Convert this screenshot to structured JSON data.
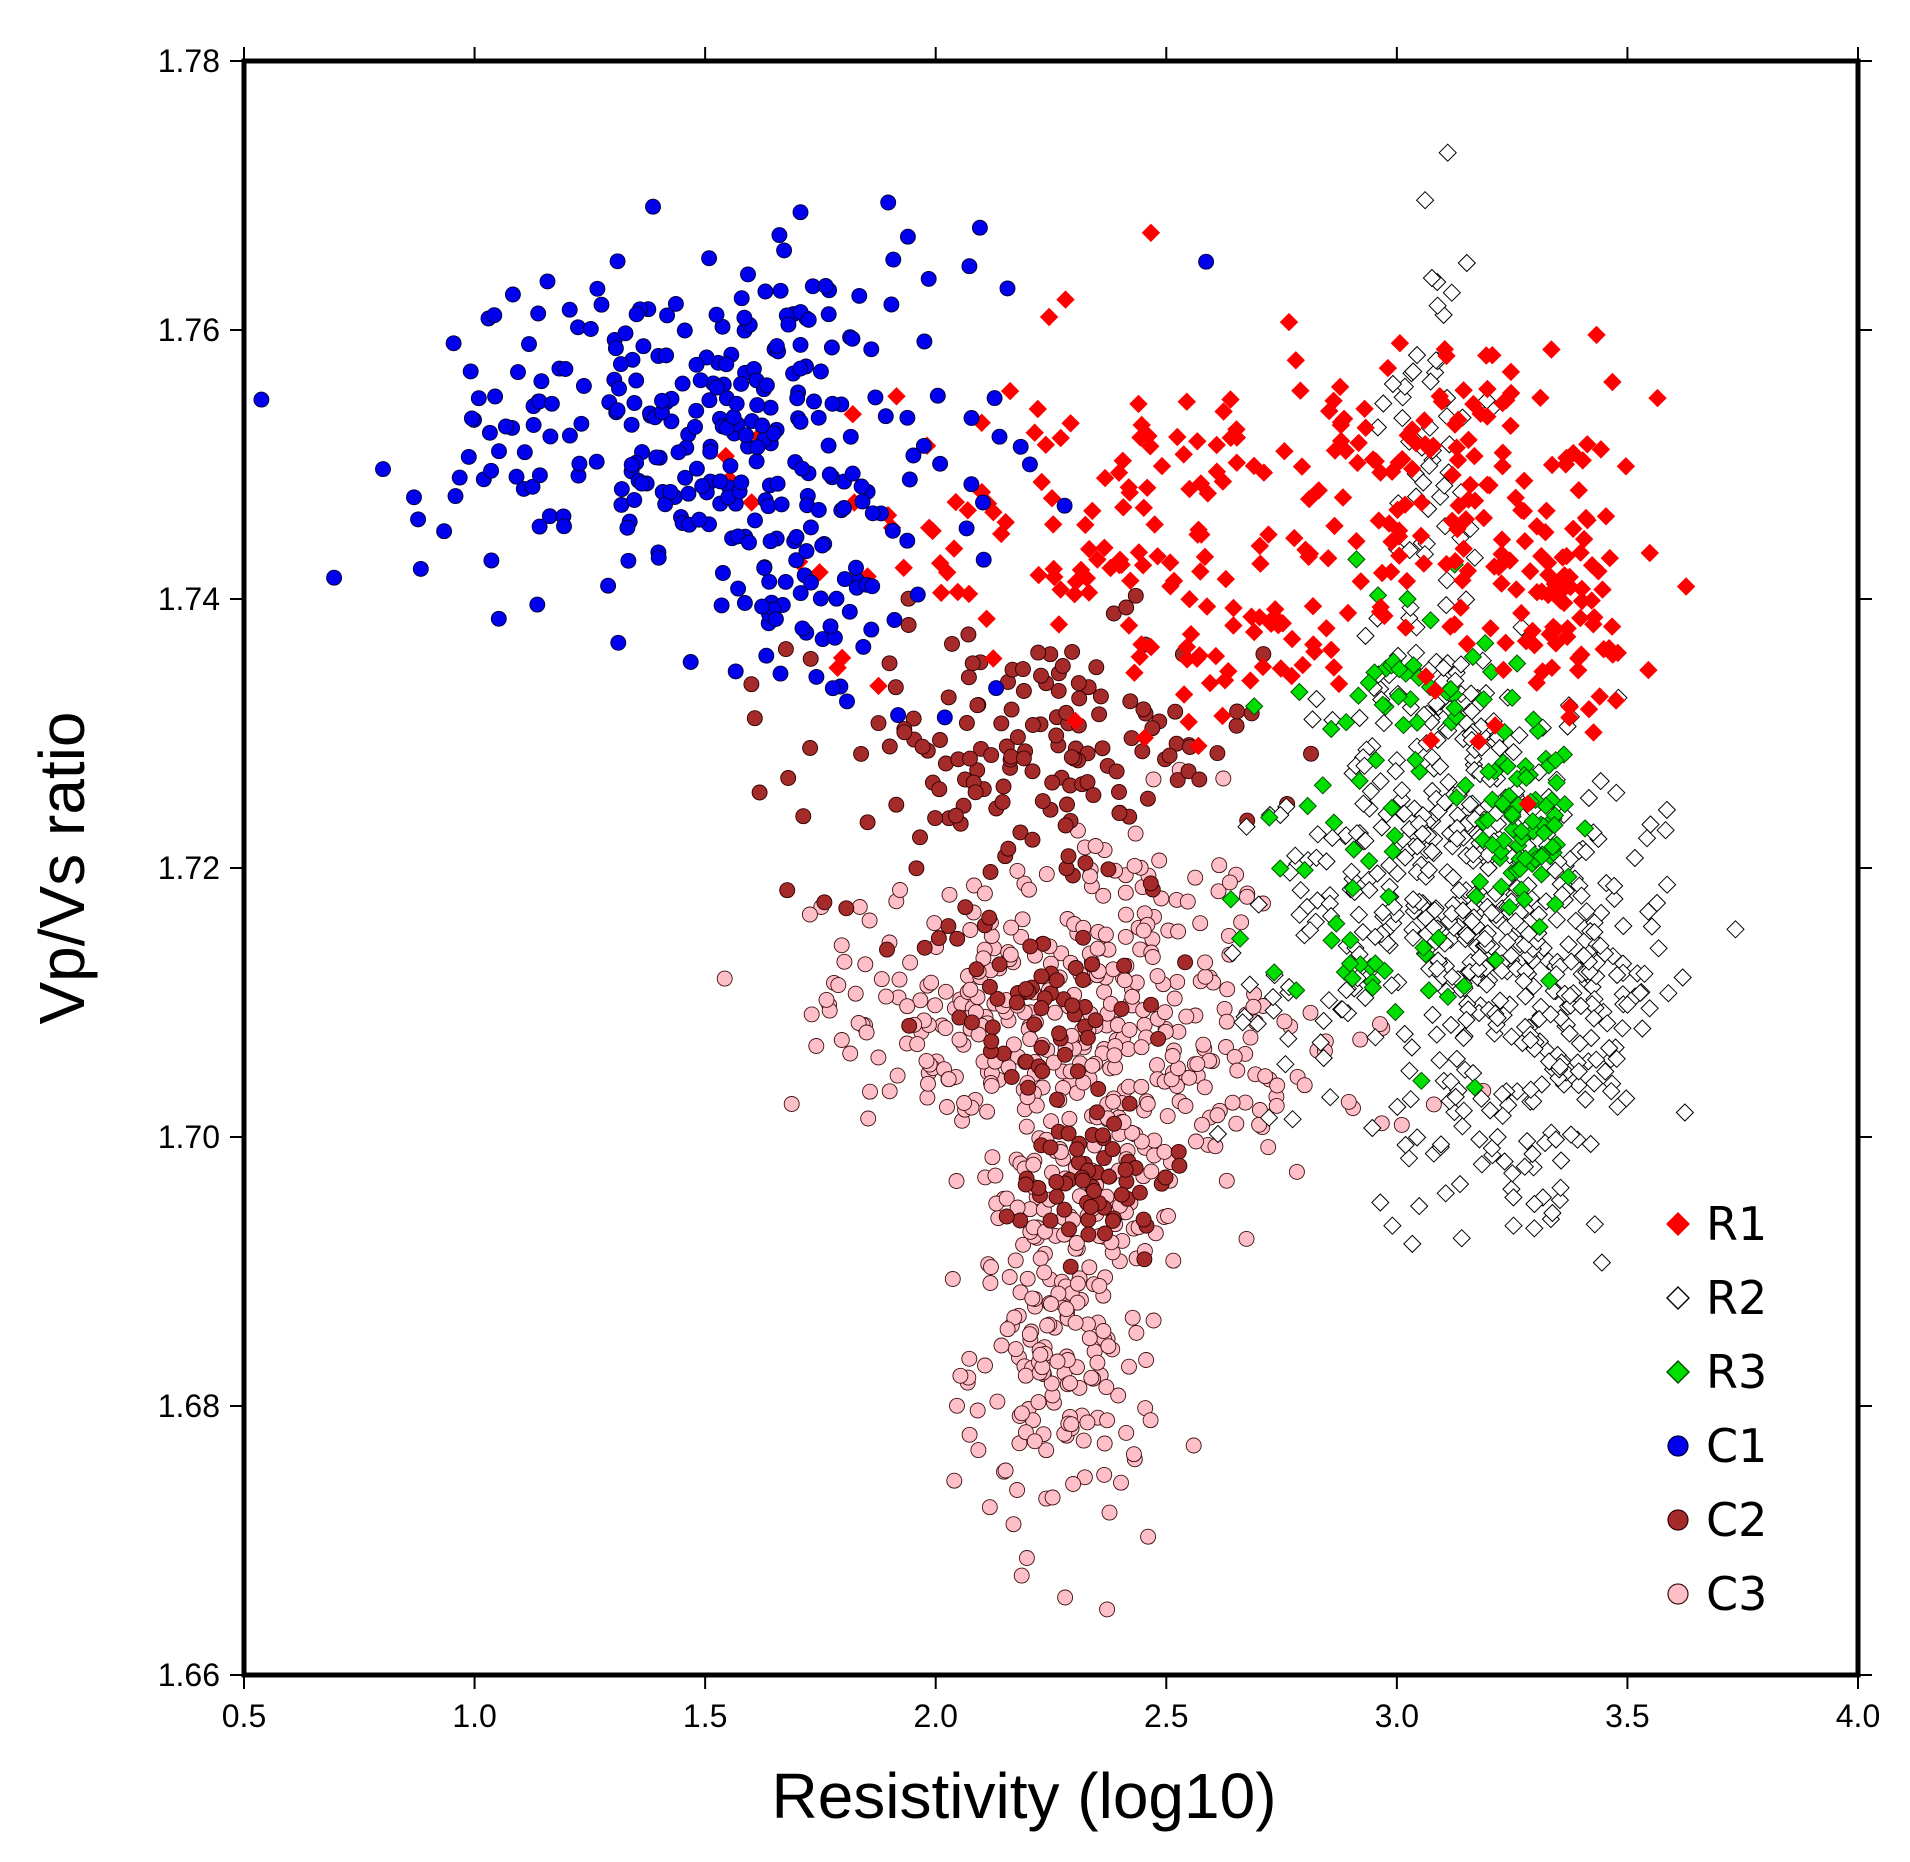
{
  "chart_data": {
    "type": "scatter",
    "xlabel": "Resistivity (log10)",
    "ylabel": "Vp/Vs ratio",
    "xlim": [
      0.5,
      4.0
    ],
    "ylim": [
      1.66,
      1.78
    ],
    "xticks": [
      "0.5",
      "1.0",
      "1.5",
      "2.0",
      "2.5",
      "3.0",
      "3.5",
      "4.0"
    ],
    "yticks": [
      "1.66",
      "1.68",
      "1.70",
      "1.72",
      "1.74",
      "1.76",
      "1.78"
    ],
    "legend_position": "bottom-right",
    "series": [
      {
        "name": "R1",
        "marker": "diamond",
        "color": "#ff0000",
        "stroke": "#ff0000",
        "clusters": [
          {
            "cx": 2.25,
            "cy": 1.745,
            "sx": 0.35,
            "sy": 0.006,
            "n": 90
          },
          {
            "cx": 2.75,
            "cy": 1.748,
            "sx": 0.25,
            "sy": 0.007,
            "n": 90
          },
          {
            "cx": 3.2,
            "cy": 1.748,
            "sx": 0.15,
            "sy": 0.006,
            "n": 100
          },
          {
            "cx": 3.35,
            "cy": 1.738,
            "sx": 0.1,
            "sy": 0.005,
            "n": 60
          },
          {
            "cx": 2.65,
            "cy": 1.736,
            "sx": 0.15,
            "sy": 0.003,
            "n": 30
          }
        ]
      },
      {
        "name": "R2",
        "marker": "diamond",
        "color": "#ffffff",
        "stroke": "#000000",
        "clusters": [
          {
            "cx": 3.1,
            "cy": 1.722,
            "sx": 0.12,
            "sy": 0.008,
            "n": 280
          },
          {
            "cx": 3.35,
            "cy": 1.712,
            "sx": 0.12,
            "sy": 0.008,
            "n": 260
          },
          {
            "cx": 3.08,
            "cy": 1.752,
            "sx": 0.05,
            "sy": 0.008,
            "n": 60
          },
          {
            "cx": 2.85,
            "cy": 1.712,
            "sx": 0.12,
            "sy": 0.008,
            "n": 60
          },
          {
            "cx": 3.15,
            "cy": 1.7,
            "sx": 0.1,
            "sy": 0.003,
            "n": 25
          }
        ]
      },
      {
        "name": "R3",
        "marker": "diamond",
        "color": "#00e000",
        "stroke": "#005000",
        "clusters": [
          {
            "cx": 3.28,
            "cy": 1.723,
            "sx": 0.05,
            "sy": 0.003,
            "n": 70
          },
          {
            "cx": 3.05,
            "cy": 1.733,
            "sx": 0.12,
            "sy": 0.004,
            "n": 50
          },
          {
            "cx": 2.95,
            "cy": 1.716,
            "sx": 0.15,
            "sy": 0.005,
            "n": 40
          }
        ]
      },
      {
        "name": "C1",
        "marker": "circle",
        "color": "#0000ee",
        "stroke": "#000033",
        "clusters": [
          {
            "cx": 1.5,
            "cy": 1.752,
            "sx": 0.3,
            "sy": 0.006,
            "n": 260
          },
          {
            "cx": 1.75,
            "cy": 1.74,
            "sx": 0.15,
            "sy": 0.005,
            "n": 50
          },
          {
            "cx": 1.7,
            "cy": 1.762,
            "sx": 0.2,
            "sy": 0.003,
            "n": 30
          }
        ]
      },
      {
        "name": "C2",
        "marker": "circle",
        "color": "#a52a2a",
        "stroke": "#300000",
        "clusters": [
          {
            "cx": 2.2,
            "cy": 1.728,
            "sx": 0.25,
            "sy": 0.005,
            "n": 160
          },
          {
            "cx": 2.2,
            "cy": 1.71,
            "sx": 0.12,
            "sy": 0.004,
            "n": 60
          },
          {
            "cx": 2.35,
            "cy": 1.697,
            "sx": 0.08,
            "sy": 0.003,
            "n": 60
          }
        ]
      },
      {
        "name": "C3",
        "marker": "circle",
        "color": "#ffbfc8",
        "stroke": "#401010",
        "clusters": [
          {
            "cx": 2.35,
            "cy": 1.708,
            "sx": 0.2,
            "sy": 0.008,
            "n": 320
          },
          {
            "cx": 2.28,
            "cy": 1.685,
            "sx": 0.1,
            "sy": 0.007,
            "n": 200
          },
          {
            "cx": 2.0,
            "cy": 1.71,
            "sx": 0.15,
            "sy": 0.004,
            "n": 80
          },
          {
            "cx": 2.75,
            "cy": 1.704,
            "sx": 0.15,
            "sy": 0.003,
            "n": 40
          }
        ]
      }
    ]
  }
}
